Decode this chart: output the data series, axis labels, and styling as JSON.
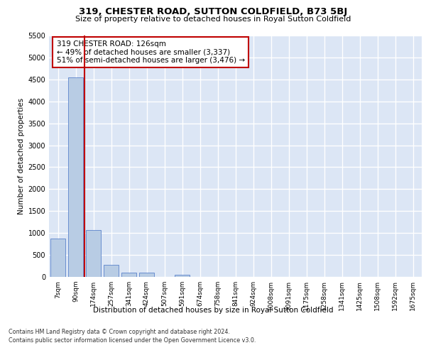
{
  "title": "319, CHESTER ROAD, SUTTON COLDFIELD, B73 5BJ",
  "subtitle": "Size of property relative to detached houses in Royal Sutton Coldfield",
  "xlabel": "Distribution of detached houses by size in Royal Sutton Coldfield",
  "ylabel": "Number of detached properties",
  "categories": [
    "7sqm",
    "90sqm",
    "174sqm",
    "257sqm",
    "341sqm",
    "424sqm",
    "507sqm",
    "591sqm",
    "674sqm",
    "758sqm",
    "841sqm",
    "924sqm",
    "1008sqm",
    "1091sqm",
    "1175sqm",
    "1258sqm",
    "1341sqm",
    "1425sqm",
    "1508sqm",
    "1592sqm",
    "1675sqm"
  ],
  "values": [
    880,
    4550,
    1060,
    275,
    95,
    90,
    0,
    55,
    0,
    0,
    0,
    0,
    0,
    0,
    0,
    0,
    0,
    0,
    0,
    0,
    0
  ],
  "bar_color": "#b8cce4",
  "bar_edge_color": "#4472c4",
  "vline_x_index": 1,
  "vline_color": "#c00000",
  "annotation_title": "319 CHESTER ROAD: 126sqm",
  "annotation_line1": "← 49% of detached houses are smaller (3,337)",
  "annotation_line2": "51% of semi-detached houses are larger (3,476) →",
  "annotation_box_color": "#c00000",
  "ylim": [
    0,
    5500
  ],
  "yticks": [
    0,
    500,
    1000,
    1500,
    2000,
    2500,
    3000,
    3500,
    4000,
    4500,
    5000,
    5500
  ],
  "background_color": "#dce6f5",
  "grid_color": "#ffffff",
  "footer1": "Contains HM Land Registry data © Crown copyright and database right 2024.",
  "footer2": "Contains public sector information licensed under the Open Government Licence v3.0."
}
